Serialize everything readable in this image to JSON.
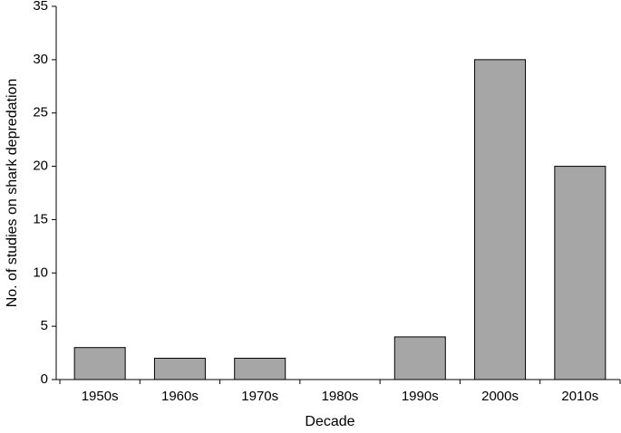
{
  "chart_data": {
    "type": "bar",
    "x_label": "Decade",
    "y_label": "No. of studies on shark depredation",
    "categories": [
      "1950s",
      "1960s",
      "1970s",
      "1980s",
      "1990s",
      "2000s",
      "2010s"
    ],
    "values": [
      3,
      2,
      2,
      0,
      4,
      30,
      20
    ],
    "color": "#a6a6a6",
    "ylim": [
      0,
      35
    ],
    "yticks": [
      0,
      5,
      10,
      15,
      20,
      25,
      30,
      35
    ],
    "grid": false
  }
}
